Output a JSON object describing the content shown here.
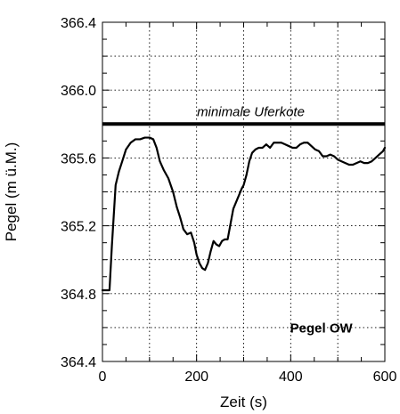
{
  "chart_data": {
    "type": "line",
    "title": "",
    "xlabel": "Zeit (s)",
    "ylabel": "Pegel (m ü.M.)",
    "xlim": [
      0,
      600
    ],
    "ylim": [
      364.4,
      366.4
    ],
    "x_ticks": [
      0,
      200,
      400,
      600
    ],
    "x_tick_labels": [
      "0",
      "200",
      "400",
      "600"
    ],
    "y_ticks": [
      364.4,
      364.8,
      365.2,
      365.6,
      366.0,
      366.4
    ],
    "y_tick_labels": [
      "364.4",
      "364.8",
      "365.2",
      "365.6",
      "366.0",
      "366.4"
    ],
    "grid": true,
    "series": [
      {
        "x": [
          0,
          8,
          15,
          20,
          28,
          35,
          42,
          50,
          60,
          70,
          80,
          90,
          100,
          108,
          115,
          122,
          130,
          140,
          150,
          158,
          165,
          172,
          180,
          188,
          195,
          200,
          206,
          212,
          218,
          224,
          230,
          236,
          242,
          248,
          254,
          260,
          266,
          272,
          278,
          284,
          290,
          296,
          300,
          306,
          312,
          318,
          325,
          332,
          340,
          348,
          356,
          364,
          372,
          380,
          388,
          396,
          404,
          412,
          420,
          428,
          436,
          444,
          452,
          460,
          468,
          476,
          484,
          492,
          500,
          508,
          516,
          524,
          532,
          540,
          548,
          556,
          564,
          572,
          580,
          588,
          596,
          600
        ],
        "y": [
          364.82,
          364.82,
          364.82,
          365.08,
          365.44,
          365.52,
          365.58,
          365.65,
          365.69,
          365.71,
          365.71,
          365.72,
          365.72,
          365.71,
          365.66,
          365.58,
          365.53,
          365.48,
          365.4,
          365.31,
          365.25,
          365.18,
          365.15,
          365.16,
          365.1,
          365.03,
          364.98,
          364.95,
          364.94,
          364.98,
          365.05,
          365.11,
          365.09,
          365.08,
          365.11,
          365.12,
          365.12,
          365.21,
          365.3,
          365.34,
          365.38,
          365.42,
          365.44,
          365.5,
          365.58,
          365.63,
          365.65,
          365.66,
          365.66,
          365.68,
          365.66,
          365.69,
          365.69,
          365.69,
          365.68,
          365.67,
          365.66,
          365.66,
          365.68,
          365.69,
          365.69,
          365.67,
          365.65,
          365.64,
          365.61,
          365.61,
          365.62,
          365.61,
          365.59,
          365.58,
          365.57,
          365.56,
          365.56,
          365.57,
          365.58,
          365.57,
          365.57,
          365.58,
          365.6,
          365.62,
          365.64,
          365.66
        ]
      }
    ],
    "reference_line": {
      "y": 365.8,
      "label": "minimale Uferkote"
    },
    "annotation": "Pegel OW"
  }
}
